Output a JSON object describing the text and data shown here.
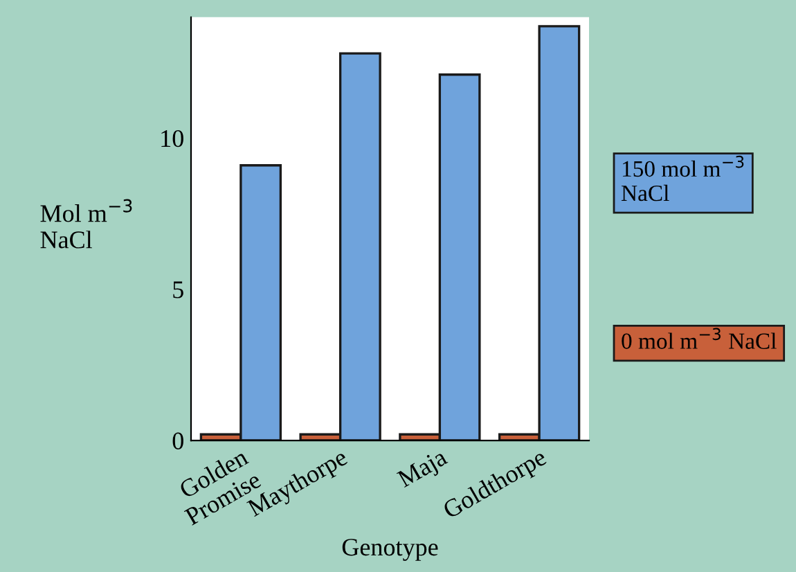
{
  "chart_data": {
    "type": "bar",
    "xlabel": "Genotype",
    "ylabel": "Mol m$^{−3}$\nNaCl",
    "categories": [
      "Golden\nPromise",
      "Maythorpe",
      "Maja",
      "Goldthorpe"
    ],
    "series": [
      {
        "name": "0 mol m$^{−3}$ NaCl",
        "color": "#c8603a",
        "values": [
          0.2,
          0.2,
          0.2,
          0.2
        ]
      },
      {
        "name": "150 mol m$^{−3}$ NaCl",
        "color": "#6fa3dc",
        "values": [
          9.1,
          12.8,
          12.1,
          13.7
        ]
      }
    ],
    "ylim": [
      0,
      14
    ],
    "yticks": [
      0,
      5,
      10
    ],
    "grid": false,
    "legend": "right"
  }
}
